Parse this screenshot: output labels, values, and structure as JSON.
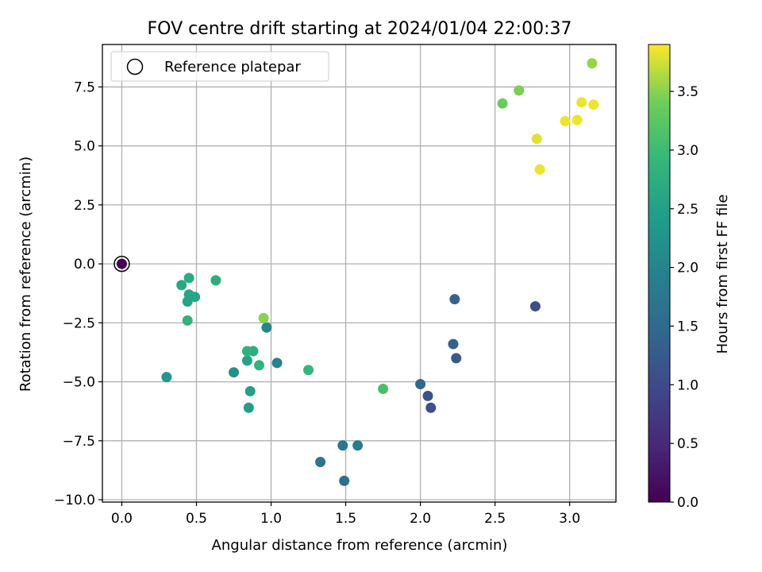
{
  "chart_data": {
    "type": "scatter",
    "title": "FOV centre drift starting at 2024/01/04 22:00:37",
    "xlabel": "Angular distance from reference (arcmin)",
    "ylabel": "Rotation from reference (arcmin)",
    "xlim": [
      -0.13,
      3.31
    ],
    "ylim": [
      -10.1,
      9.3
    ],
    "xticks": [
      0.0,
      0.5,
      1.0,
      1.5,
      2.0,
      2.5,
      3.0
    ],
    "yticks": [
      -10.0,
      -7.5,
      -5.0,
      -2.5,
      0.0,
      2.5,
      5.0,
      7.5
    ],
    "grid": true,
    "legend": {
      "placement": "top-left",
      "entries": [
        "Reference platepar"
      ]
    },
    "colorbar": {
      "label": "Hours from first FF file",
      "colormap": "viridis",
      "range": [
        0.0,
        3.9
      ],
      "ticks": [
        0.0,
        0.5,
        1.0,
        1.5,
        2.0,
        2.5,
        3.0,
        3.5
      ]
    },
    "reference": {
      "x": 0.0,
      "y": 0.0,
      "c": 0.0
    },
    "points": [
      {
        "x": 0.0,
        "y": 0.0,
        "c": 0.0
      },
      {
        "x": 2.77,
        "y": -1.8,
        "c": 1.05
      },
      {
        "x": 2.07,
        "y": -6.1,
        "c": 1.1
      },
      {
        "x": 2.05,
        "y": -5.6,
        "c": 1.15
      },
      {
        "x": 2.24,
        "y": -4.0,
        "c": 1.25
      },
      {
        "x": 2.22,
        "y": -3.4,
        "c": 1.35
      },
      {
        "x": 2.23,
        "y": -1.5,
        "c": 1.4
      },
      {
        "x": 2.0,
        "y": -5.1,
        "c": 1.45
      },
      {
        "x": 1.49,
        "y": -9.2,
        "c": 1.6
      },
      {
        "x": 1.33,
        "y": -8.4,
        "c": 1.7
      },
      {
        "x": 1.48,
        "y": -7.7,
        "c": 1.75
      },
      {
        "x": 1.58,
        "y": -7.7,
        "c": 1.85
      },
      {
        "x": 1.04,
        "y": -4.2,
        "c": 1.95
      },
      {
        "x": 0.97,
        "y": -2.7,
        "c": 2.0
      },
      {
        "x": 0.75,
        "y": -4.6,
        "c": 2.2
      },
      {
        "x": 0.3,
        "y": -4.8,
        "c": 2.35
      },
      {
        "x": 0.85,
        "y": -6.1,
        "c": 2.45
      },
      {
        "x": 0.86,
        "y": -5.4,
        "c": 2.5
      },
      {
        "x": 0.84,
        "y": -4.1,
        "c": 2.55
      },
      {
        "x": 0.44,
        "y": -1.6,
        "c": 2.55
      },
      {
        "x": 0.45,
        "y": -1.3,
        "c": 2.6
      },
      {
        "x": 0.49,
        "y": -1.4,
        "c": 2.6
      },
      {
        "x": 0.4,
        "y": -0.9,
        "c": 2.65
      },
      {
        "x": 0.45,
        "y": -0.6,
        "c": 2.7
      },
      {
        "x": 0.63,
        "y": -0.7,
        "c": 2.75
      },
      {
        "x": 0.88,
        "y": -3.7,
        "c": 2.75
      },
      {
        "x": 0.84,
        "y": -3.7,
        "c": 2.8
      },
      {
        "x": 0.92,
        "y": -4.3,
        "c": 2.85
      },
      {
        "x": 0.44,
        "y": -2.4,
        "c": 2.85
      },
      {
        "x": 1.25,
        "y": -4.5,
        "c": 2.9
      },
      {
        "x": 1.75,
        "y": -5.3,
        "c": 3.1
      },
      {
        "x": 0.95,
        "y": -2.3,
        "c": 3.5
      },
      {
        "x": 2.55,
        "y": 6.8,
        "c": 3.35
      },
      {
        "x": 2.66,
        "y": 7.35,
        "c": 3.45
      },
      {
        "x": 3.15,
        "y": 8.5,
        "c": 3.55
      },
      {
        "x": 2.78,
        "y": 5.3,
        "c": 3.8
      },
      {
        "x": 2.8,
        "y": 4.0,
        "c": 3.85
      },
      {
        "x": 2.97,
        "y": 6.05,
        "c": 3.85
      },
      {
        "x": 3.05,
        "y": 6.1,
        "c": 3.85
      },
      {
        "x": 3.08,
        "y": 6.85,
        "c": 3.85
      },
      {
        "x": 3.16,
        "y": 6.75,
        "c": 3.85
      }
    ]
  }
}
